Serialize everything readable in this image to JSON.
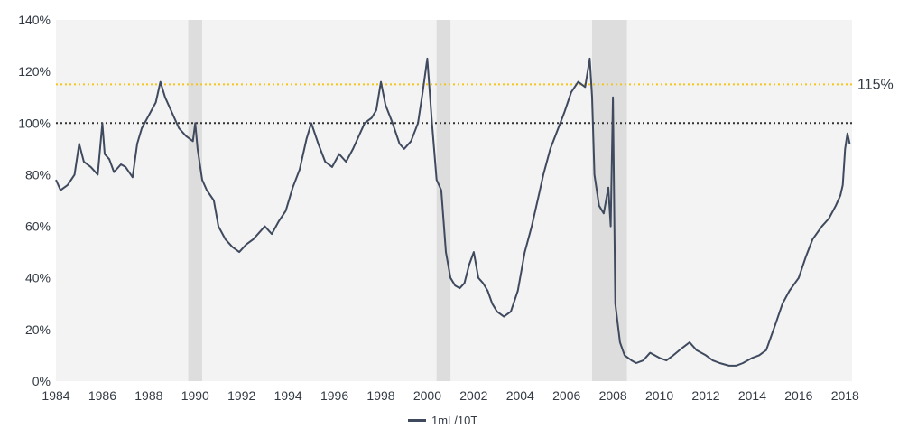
{
  "chart_data": {
    "type": "line",
    "title": "",
    "xlabel": "",
    "ylabel": "",
    "xlim": [
      1984,
      2018.3
    ],
    "ylim": [
      0,
      140
    ],
    "x_ticks": [
      1984,
      1986,
      1988,
      1990,
      1992,
      1994,
      1996,
      1998,
      2000,
      2002,
      2004,
      2006,
      2008,
      2010,
      2012,
      2014,
      2016,
      2018
    ],
    "y_ticks": [
      0,
      20,
      40,
      60,
      80,
      100,
      120,
      140
    ],
    "y_tick_labels": [
      "0%",
      "20%",
      "40%",
      "60%",
      "80%",
      "100%",
      "120%",
      "140%"
    ],
    "x_tick_labels": [
      "1984",
      "1986",
      "1988",
      "1990",
      "1992",
      "1994",
      "1996",
      "1998",
      "2000",
      "2002",
      "2004",
      "2006",
      "2008",
      "2010",
      "2012",
      "2014",
      "2016",
      "2018"
    ],
    "grid": false,
    "plot_background": "#f3f3f3",
    "shaded_periods": [
      [
        1989.7,
        1990.3
      ],
      [
        2000.4,
        2001.0
      ],
      [
        2007.1,
        2008.6
      ]
    ],
    "reference_lines": [
      {
        "y": 115,
        "style": "dotted",
        "color": "#f5c518",
        "label": "115%"
      },
      {
        "y": 100,
        "style": "dotted",
        "color": "#333333"
      }
    ],
    "series": [
      {
        "name": "1mL/10T",
        "color": "#3f4a5e",
        "x": [
          1984.0,
          1984.2,
          1984.5,
          1984.8,
          1985.0,
          1985.2,
          1985.5,
          1985.8,
          1986.0,
          1986.1,
          1986.3,
          1986.5,
          1986.8,
          1987.0,
          1987.3,
          1987.5,
          1987.7,
          1988.0,
          1988.3,
          1988.5,
          1988.7,
          1989.0,
          1989.3,
          1989.6,
          1989.9,
          1990.0,
          1990.1,
          1990.3,
          1990.5,
          1990.8,
          1991.0,
          1991.3,
          1991.6,
          1991.9,
          1992.2,
          1992.5,
          1992.8,
          1993.0,
          1993.3,
          1993.6,
          1993.9,
          1994.2,
          1994.5,
          1994.8,
          1995.0,
          1995.3,
          1995.6,
          1995.9,
          1996.2,
          1996.5,
          1996.8,
          1997.0,
          1997.3,
          1997.6,
          1997.8,
          1998.0,
          1998.2,
          1998.5,
          1998.8,
          1999.0,
          1999.3,
          1999.6,
          1999.8,
          2000.0,
          2000.2,
          2000.4,
          2000.6,
          2000.8,
          2001.0,
          2001.2,
          2001.4,
          2001.6,
          2001.8,
          2002.0,
          2002.2,
          2002.4,
          2002.6,
          2002.8,
          2003.0,
          2003.3,
          2003.6,
          2003.9,
          2004.2,
          2004.5,
          2004.8,
          2005.0,
          2005.3,
          2005.6,
          2005.9,
          2006.2,
          2006.5,
          2006.8,
          2007.0,
          2007.1,
          2007.2,
          2007.4,
          2007.6,
          2007.8,
          2007.9,
          2008.0,
          2008.1,
          2008.3,
          2008.5,
          2008.8,
          2009.0,
          2009.3,
          2009.6,
          2010.0,
          2010.3,
          2010.6,
          2011.0,
          2011.3,
          2011.6,
          2012.0,
          2012.3,
          2012.6,
          2013.0,
          2013.3,
          2013.6,
          2014.0,
          2014.3,
          2014.6,
          2015.0,
          2015.3,
          2015.6,
          2016.0,
          2016.3,
          2016.6,
          2017.0,
          2017.3,
          2017.6,
          2017.8,
          2017.9,
          2018.0,
          2018.1,
          2018.2
        ],
        "values": [
          78,
          74,
          76,
          80,
          92,
          85,
          83,
          80,
          100,
          88,
          86,
          81,
          84,
          83,
          79,
          92,
          98,
          103,
          108,
          116,
          110,
          104,
          98,
          95,
          93,
          100,
          90,
          78,
          74,
          70,
          60,
          55,
          52,
          50,
          53,
          55,
          58,
          60,
          57,
          62,
          66,
          75,
          82,
          94,
          100,
          92,
          85,
          83,
          88,
          85,
          90,
          94,
          100,
          102,
          105,
          116,
          107,
          100,
          92,
          90,
          93,
          100,
          112,
          125,
          100,
          78,
          74,
          50,
          40,
          37,
          36,
          38,
          45,
          50,
          40,
          38,
          35,
          30,
          27,
          25,
          27,
          35,
          50,
          60,
          72,
          80,
          90,
          97,
          104,
          112,
          116,
          114,
          125,
          110,
          80,
          68,
          65,
          75,
          60,
          110,
          30,
          15,
          10,
          8,
          7,
          8,
          11,
          9,
          8,
          10,
          13,
          15,
          12,
          10,
          8,
          7,
          6,
          6,
          7,
          9,
          10,
          12,
          22,
          30,
          35,
          40,
          48,
          55,
          60,
          63,
          68,
          72,
          76,
          90,
          96,
          92
        ]
      }
    ]
  }
}
